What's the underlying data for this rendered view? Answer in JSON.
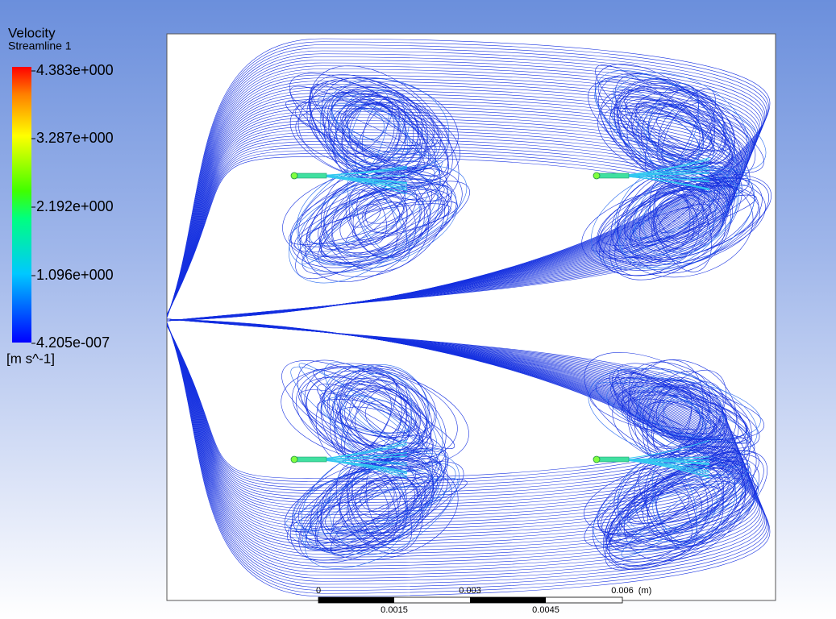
{
  "legend": {
    "title": "Velocity",
    "subtitle": "Streamline 1",
    "labels": [
      "4.383e+000",
      "3.287e+000",
      "2.192e+000",
      "1.096e+000",
      "4.205e-007"
    ],
    "unit": "[m s^-1]"
  },
  "scale_bar": {
    "top_labels": [
      "0",
      "0.003",
      "0.006",
      "(m)"
    ],
    "bottom_labels": [
      "0.0015",
      "0.0045"
    ]
  }
}
